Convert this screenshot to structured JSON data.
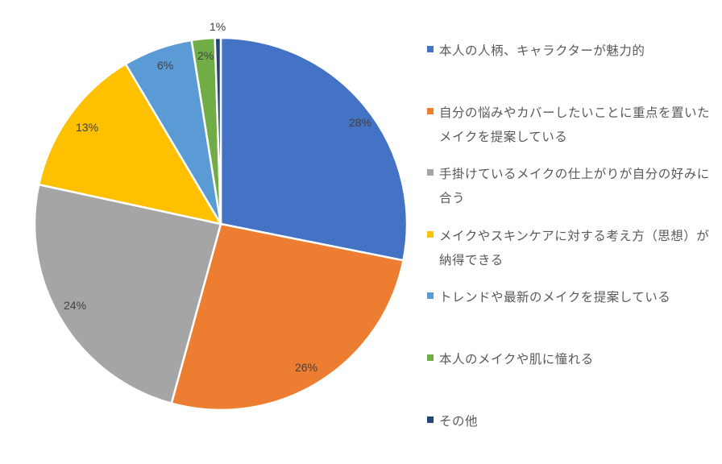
{
  "chart_data": {
    "type": "pie",
    "title": "",
    "start_angle": "12 o'clock, clockwise",
    "categories": [
      "本人の人柄、キャラクターが魅力的",
      "自分の悩みやカバーしたいことに重点を置いたメイクを提案している",
      "手掛けているメイクの仕上がりが自分の好みに合う",
      "メイクやスキンケアに対する考え方（思想）が納得できる",
      "トレンドや最新のメイクを提案している",
      "本人のメイクや肌に憧れる",
      "その他"
    ],
    "values": [
      28,
      26,
      24,
      13,
      6,
      2,
      1
    ],
    "labels": [
      "28%",
      "26%",
      "24%",
      "13%",
      "6%",
      "2%",
      "1%"
    ],
    "colors": [
      "#4472C4",
      "#ED7D31",
      "#A5A5A5",
      "#FFC000",
      "#5B9BD5",
      "#70AD47",
      "#264478"
    ],
    "legend_position": "right"
  },
  "legend": {
    "items": [
      {
        "label": "本人の人柄、キャラクターが魅力的",
        "color": "#4472C4"
      },
      {
        "label": "自分の悩みやカバーしたいことに重点を置いたメイクを提案している",
        "color": "#ED7D31"
      },
      {
        "label": "手掛けているメイクの仕上がりが自分の好みに合う",
        "color": "#A5A5A5"
      },
      {
        "label": "メイクやスキンケアに対する考え方（思想）が納得できる",
        "color": "#FFC000"
      },
      {
        "label": "トレンドや最新のメイクを提案している",
        "color": "#5B9BD5"
      },
      {
        "label": "本人のメイクや肌に憧れる",
        "color": "#70AD47"
      },
      {
        "label": "その他",
        "color": "#264478"
      }
    ]
  },
  "data_labels": [
    "28%",
    "26%",
    "24%",
    "13%",
    "6%",
    "2%",
    "1%"
  ]
}
